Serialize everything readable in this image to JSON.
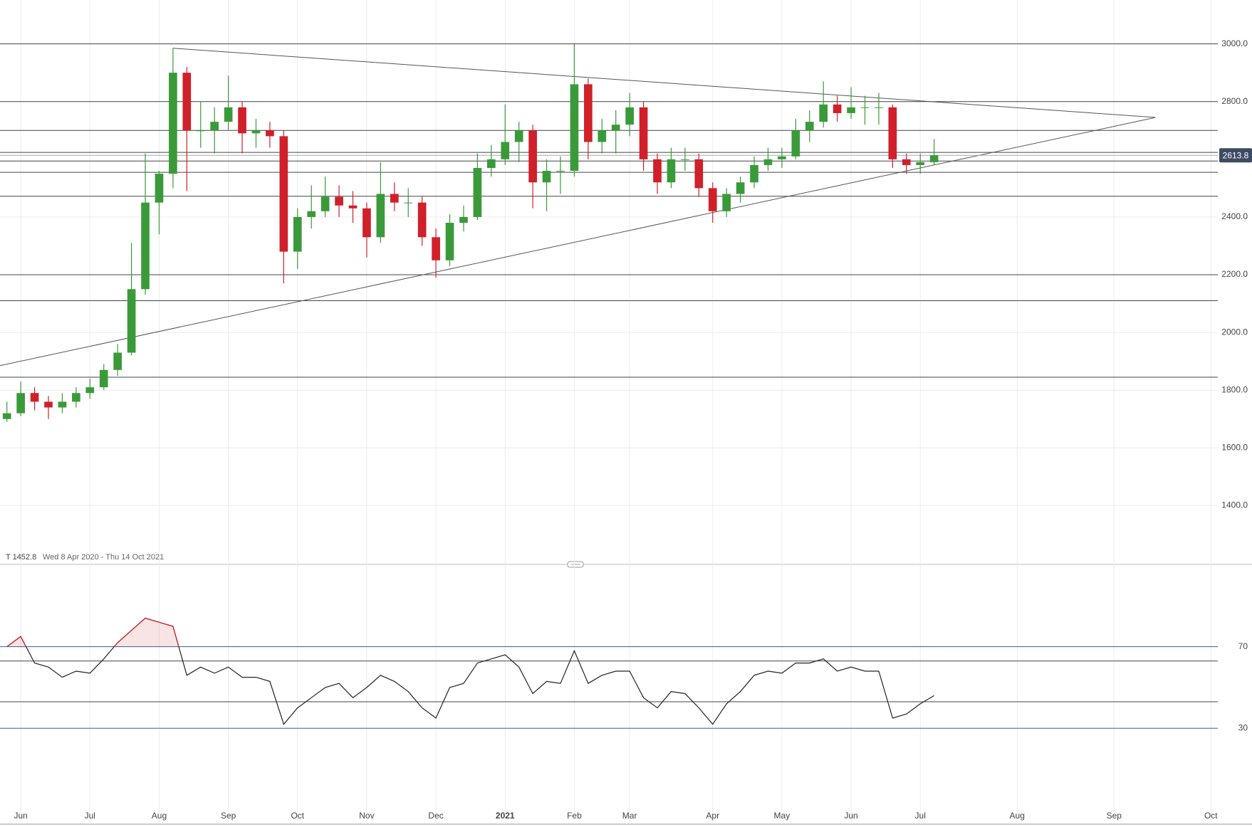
{
  "chart_data": [
    {
      "type": "candlestick",
      "info": "T 1452.8",
      "date_range": "Wed 8 Apr 2020 - Thu 14 Oct 2021",
      "last_price": 2613.8,
      "categories": [
        null,
        "Jun",
        null,
        null,
        null,
        null,
        "Jul",
        null,
        null,
        null,
        null,
        "Aug",
        null,
        null,
        null,
        null,
        "Sep",
        null,
        null,
        null,
        null,
        "Oct",
        null,
        null,
        null,
        null,
        "Nov",
        null,
        null,
        null,
        null,
        "Dec",
        null,
        null,
        null,
        null,
        "2021",
        null,
        null,
        null,
        null,
        "Feb",
        null,
        null,
        null,
        "Mar",
        null,
        null,
        null,
        null,
        null,
        "Apr",
        null,
        null,
        null,
        null,
        "May",
        null,
        null,
        null,
        null,
        "Jun",
        null,
        null,
        null,
        null,
        "Jul",
        null,
        null,
        null,
        null,
        null,
        null,
        "Aug",
        null,
        null,
        null,
        null,
        null,
        null,
        "Sep",
        null,
        null,
        null,
        null,
        null,
        null,
        "Oct"
      ],
      "open": [
        1700,
        1720,
        1790,
        1760,
        1740,
        1760,
        1790,
        1810,
        1870,
        1930,
        2150,
        2450,
        2550,
        2900,
        2700,
        2700,
        2730,
        2780,
        2690,
        2700,
        2680,
        2280,
        2400,
        2420,
        2470,
        2440,
        2430,
        2330,
        2480,
        2450,
        2450,
        2330,
        2250,
        2380,
        2400,
        2570,
        2600,
        2660,
        2700,
        2520,
        2560,
        2560,
        2860,
        2660,
        2700,
        2720,
        2780,
        2600,
        2520,
        2600,
        2600,
        2500,
        2420,
        2480,
        2520,
        2580,
        2600,
        2610,
        2700,
        2730,
        2790,
        2760,
        2780,
        2780,
        2780,
        2600,
        2580,
        2590,
        null,
        null,
        null,
        null,
        null,
        null,
        null,
        null,
        null,
        null,
        null,
        null,
        null,
        null,
        null,
        null,
        null,
        null,
        null,
        null
      ],
      "high": [
        1760,
        1830,
        1810,
        1780,
        1790,
        1810,
        1840,
        1890,
        1960,
        2310,
        2620,
        2560,
        2985,
        2920,
        2800,
        2780,
        2890,
        2800,
        2740,
        2730,
        2700,
        2430,
        2510,
        2540,
        2510,
        2490,
        2450,
        2590,
        2520,
        2500,
        2470,
        2360,
        2410,
        2440,
        2620,
        2650,
        2790,
        2730,
        2720,
        2600,
        2610,
        3000,
        2880,
        2740,
        2770,
        2830,
        2800,
        2620,
        2640,
        2640,
        2620,
        2520,
        2500,
        2540,
        2610,
        2640,
        2640,
        2740,
        2770,
        2870,
        2820,
        2850,
        2820,
        2830,
        2790,
        2620,
        2620,
        2670,
        null,
        null,
        null,
        null,
        null,
        null,
        null,
        null,
        null,
        null,
        null,
        null,
        null,
        null,
        null,
        null,
        null,
        null,
        null,
        null
      ],
      "low": [
        1690,
        1710,
        1730,
        1700,
        1720,
        1740,
        1770,
        1800,
        1850,
        1920,
        2130,
        2340,
        2500,
        2490,
        2640,
        2620,
        2700,
        2620,
        2640,
        2640,
        2170,
        2220,
        2360,
        2400,
        2400,
        2380,
        2260,
        2310,
        2420,
        2400,
        2300,
        2190,
        2230,
        2350,
        2390,
        2540,
        2580,
        2590,
        2430,
        2420,
        2480,
        2540,
        2600,
        2620,
        2620,
        2680,
        2560,
        2480,
        2500,
        2560,
        2470,
        2380,
        2400,
        2450,
        2500,
        2560,
        2570,
        2600,
        2660,
        2710,
        2730,
        2740,
        2720,
        2720,
        2570,
        2550,
        2550,
        2580,
        null,
        null,
        null,
        null,
        null,
        null,
        null,
        null,
        null,
        null,
        null,
        null,
        null,
        null,
        null,
        null,
        null,
        null,
        null,
        null
      ],
      "close": [
        1720,
        1790,
        1760,
        1740,
        1760,
        1790,
        1810,
        1870,
        1930,
        2150,
        2450,
        2550,
        2900,
        2700,
        2700,
        2730,
        2780,
        2690,
        2700,
        2680,
        2280,
        2400,
        2420,
        2470,
        2440,
        2430,
        2330,
        2480,
        2450,
        2450,
        2330,
        2250,
        2380,
        2400,
        2570,
        2600,
        2660,
        2700,
        2520,
        2560,
        2560,
        2860,
        2660,
        2700,
        2720,
        2780,
        2600,
        2520,
        2600,
        2600,
        2500,
        2420,
        2480,
        2520,
        2580,
        2600,
        2610,
        2700,
        2730,
        2790,
        2760,
        2780,
        2780,
        2780,
        2600,
        2580,
        2590,
        2613.8,
        null,
        null,
        null,
        null,
        null,
        null,
        null,
        null,
        null,
        null,
        null,
        null,
        null,
        null,
        null,
        null,
        null,
        null,
        null,
        null
      ],
      "up_color": "#3a9a3a",
      "down_color": "#d0202a",
      "levels": [
        3000,
        2800,
        2700,
        2624,
        2594,
        2555,
        2472,
        2200,
        2110,
        1845
      ],
      "trendlines": [
        [
          [
            12,
            2985
          ],
          [
            83,
            2745
          ]
        ],
        [
          [
            0,
            1885
          ],
          [
            83,
            2745
          ]
        ]
      ],
      "ylim": [
        1216,
        3152
      ],
      "yticks": [
        {
          "value": 1400,
          "label": "1400.0"
        },
        {
          "value": 1600,
          "label": "1600.0"
        },
        {
          "value": 1800,
          "label": "1800.0"
        },
        {
          "value": 2000,
          "label": "2000.0"
        },
        {
          "value": 2200,
          "label": "2200.0"
        },
        {
          "value": 2400,
          "label": "2400.0"
        },
        {
          "value": 2800,
          "label": "2800.0"
        },
        {
          "value": 3000,
          "label": "3000.0"
        }
      ],
      "grid": true
    },
    {
      "type": "line",
      "values": [
        70,
        75,
        62,
        60,
        55,
        58,
        57,
        64,
        72,
        78,
        84,
        82,
        80,
        56,
        60,
        57,
        60,
        55,
        55,
        53,
        32,
        40,
        45,
        50,
        52,
        45,
        50,
        56,
        53,
        48,
        40,
        35,
        50,
        52,
        62,
        64,
        66,
        60,
        47,
        53,
        52,
        68,
        52,
        56,
        58,
        58,
        45,
        40,
        48,
        47,
        40,
        32,
        42,
        48,
        56,
        58,
        57,
        62,
        62,
        64,
        58,
        60,
        58,
        58,
        35,
        37,
        42,
        46,
        null,
        null,
        null,
        null,
        null,
        null,
        null,
        null,
        null,
        null,
        null,
        null,
        null,
        null,
        null,
        null,
        null,
        null,
        null,
        null
      ],
      "color": "#222",
      "overbought_color": "#d0202a",
      "levels": [
        63,
        43
      ],
      "ylim": [
        -17,
        110
      ],
      "yticks": [
        30,
        70
      ],
      "tick_color": "#3b5998"
    }
  ]
}
